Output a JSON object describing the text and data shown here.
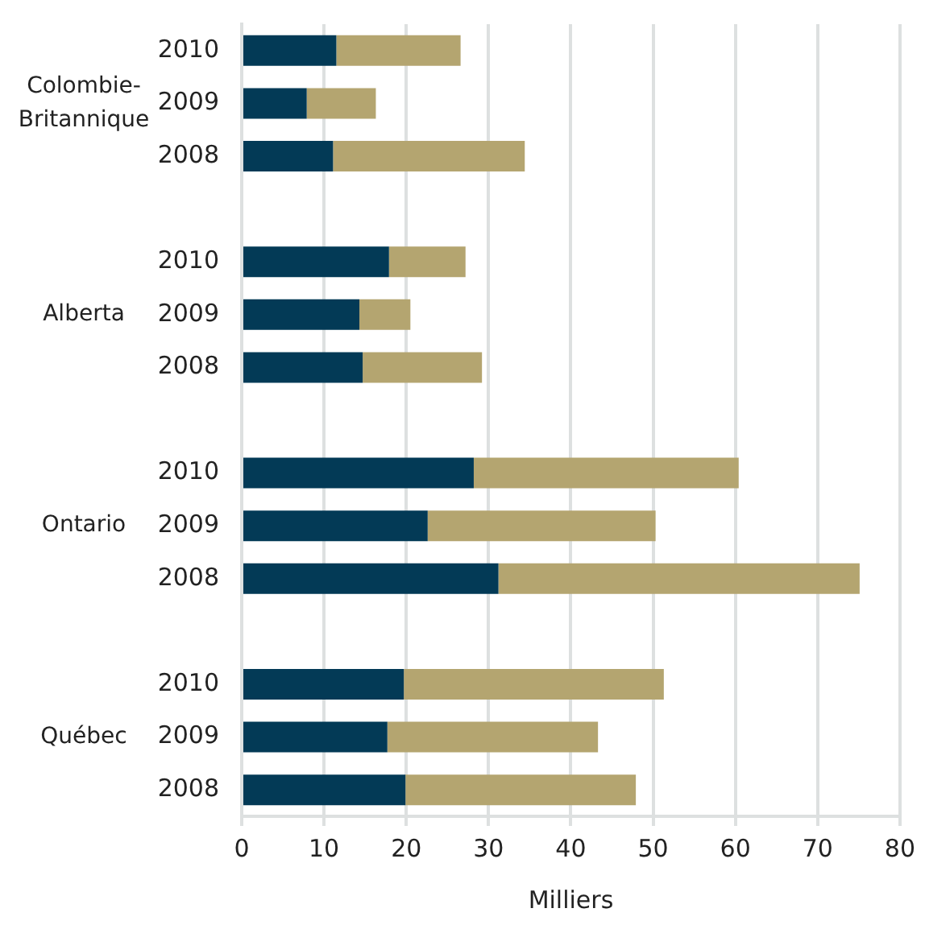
{
  "chart_data": {
    "type": "bar",
    "orientation": "horizontal",
    "stacked": true,
    "xlabel": "Milliers",
    "categories": [
      "2010",
      "2009",
      "2008",
      null,
      "2010",
      "2009",
      "2008",
      null,
      "2010",
      "2009",
      "2008",
      null,
      "2010",
      "2009",
      "2008"
    ],
    "series": [
      {
        "color": "#033a56",
        "values": [
          11.5,
          7.9,
          11.1,
          null,
          17.9,
          14.3,
          14.7,
          null,
          28.2,
          22.6,
          31.2,
          null,
          19.7,
          17.7,
          19.9
        ]
      },
      {
        "color": "#b4a570",
        "values": [
          15.1,
          8.4,
          23.3,
          null,
          9.3,
          6.2,
          14.5,
          null,
          32.2,
          27.7,
          43.9,
          null,
          31.6,
          25.6,
          28.0
        ]
      }
    ],
    "xlim": [
      0,
      80
    ],
    "xticks": [
      0,
      10,
      20,
      30,
      40,
      50,
      60,
      70,
      80
    ],
    "grid": "x",
    "legend": false,
    "annotations": [
      "Colombie-Britannique",
      "Alberta",
      "Ontario",
      "Québec"
    ]
  }
}
